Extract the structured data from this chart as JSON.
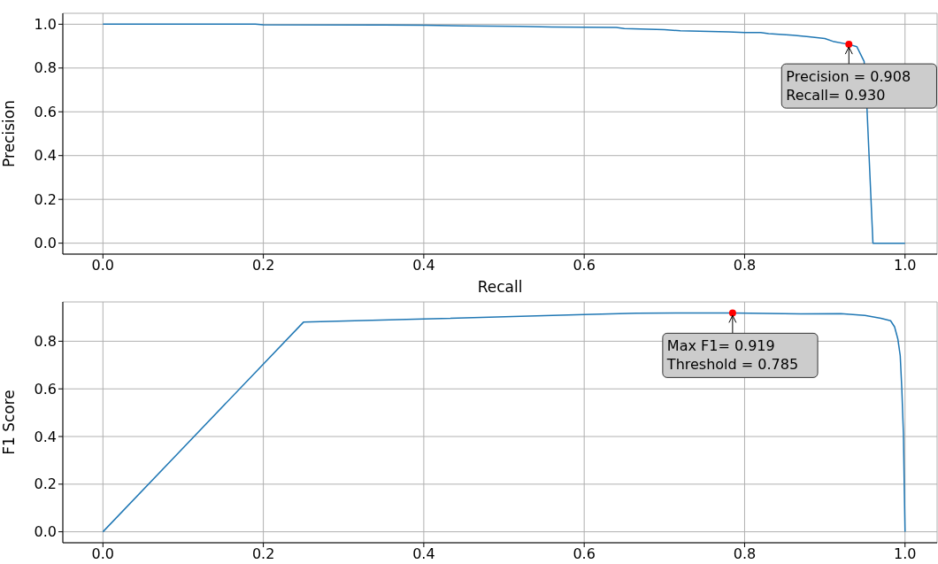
{
  "chart_data": [
    {
      "type": "line",
      "xlabel": "Recall",
      "ylabel": "Precision",
      "xlim": [
        -0.05,
        1.04
      ],
      "ylim": [
        -0.05,
        1.05
      ],
      "xticks": [
        {
          "value": 0,
          "label": "0.0"
        },
        {
          "value": 0.2,
          "label": "0.2"
        },
        {
          "value": 0.4,
          "label": "0.4"
        },
        {
          "value": 0.6,
          "label": "0.6"
        },
        {
          "value": 0.8,
          "label": "0.8"
        },
        {
          "value": 1,
          "label": "1.0"
        }
      ],
      "yticks": [
        {
          "value": 0,
          "label": "0.0"
        },
        {
          "value": 0.2,
          "label": "0.2"
        },
        {
          "value": 0.4,
          "label": "0.4"
        },
        {
          "value": 0.6,
          "label": "0.6"
        },
        {
          "value": 0.8,
          "label": "0.8"
        },
        {
          "value": 1,
          "label": "1.0"
        }
      ],
      "grid": true,
      "series": [
        {
          "marker": "none",
          "color": "#1f77b4",
          "x": [
            0,
            0.19,
            0.2,
            0.35,
            0.4,
            0.45,
            0.52,
            0.56,
            0.64,
            0.65,
            0.7,
            0.72,
            0.78,
            0.8,
            0.82,
            0.83,
            0.86,
            0.88,
            0.9,
            0.91,
            0.93,
            0.94,
            0.949,
            0.9525,
            0.96,
            1.0
          ],
          "values": [
            1.0,
            1.0,
            0.997,
            0.996,
            0.995,
            0.992,
            0.99,
            0.987,
            0.985,
            0.98,
            0.975,
            0.97,
            0.965,
            0.962,
            0.962,
            0.957,
            0.95,
            0.943,
            0.935,
            0.922,
            0.908,
            0.897,
            0.83,
            0.62,
            0.0,
            0.0
          ]
        },
        {
          "type": "scatter",
          "marker": "circle",
          "color": "#ff0000",
          "x": [
            0.93
          ],
          "values": [
            0.908
          ]
        }
      ],
      "annotations": [
        {
          "text": "Precision = 0.908\nRecall= 0.930",
          "x": 0.93,
          "y": 0.908
        }
      ]
    },
    {
      "type": "line",
      "ylabel": "F1 Score",
      "xlim": [
        -0.05,
        1.04
      ],
      "ylim": [
        -0.046,
        0.965
      ],
      "xticks": [
        {
          "value": 0,
          "label": "0.0"
        },
        {
          "value": 0.2,
          "label": "0.2"
        },
        {
          "value": 0.4,
          "label": "0.4"
        },
        {
          "value": 0.6,
          "label": "0.6"
        },
        {
          "value": 0.8,
          "label": "0.8"
        },
        {
          "value": 1,
          "label": "1.0"
        }
      ],
      "yticks": [
        {
          "value": 0,
          "label": "0.0"
        },
        {
          "value": 0.2,
          "label": "0.2"
        },
        {
          "value": 0.4,
          "label": "0.4"
        },
        {
          "value": 0.6,
          "label": "0.6"
        },
        {
          "value": 0.8,
          "label": "0.8"
        }
      ],
      "grid": true,
      "series": [
        {
          "marker": "none",
          "color": "#1f77b4",
          "x": [
            0,
            0.25,
            0.4,
            0.6,
            0.665,
            0.785,
            0.87,
            0.92,
            0.95,
            0.97,
            0.982,
            0.987,
            0.991,
            0.994,
            0.996,
            0.998,
            0.999,
            1.0
          ],
          "values": [
            0,
            0.88,
            0.893,
            0.912,
            0.918,
            0.919,
            0.915,
            0.916,
            0.908,
            0.896,
            0.886,
            0.86,
            0.81,
            0.74,
            0.6,
            0.41,
            0.2,
            0
          ]
        },
        {
          "type": "scatter",
          "marker": "circle",
          "color": "#ff0000",
          "x": [
            0.785
          ],
          "values": [
            0.919
          ]
        }
      ],
      "annotations": [
        {
          "text": "Max F1= 0.919\nThreshold = 0.785",
          "x": 0.785,
          "y": 0.919
        }
      ]
    }
  ]
}
